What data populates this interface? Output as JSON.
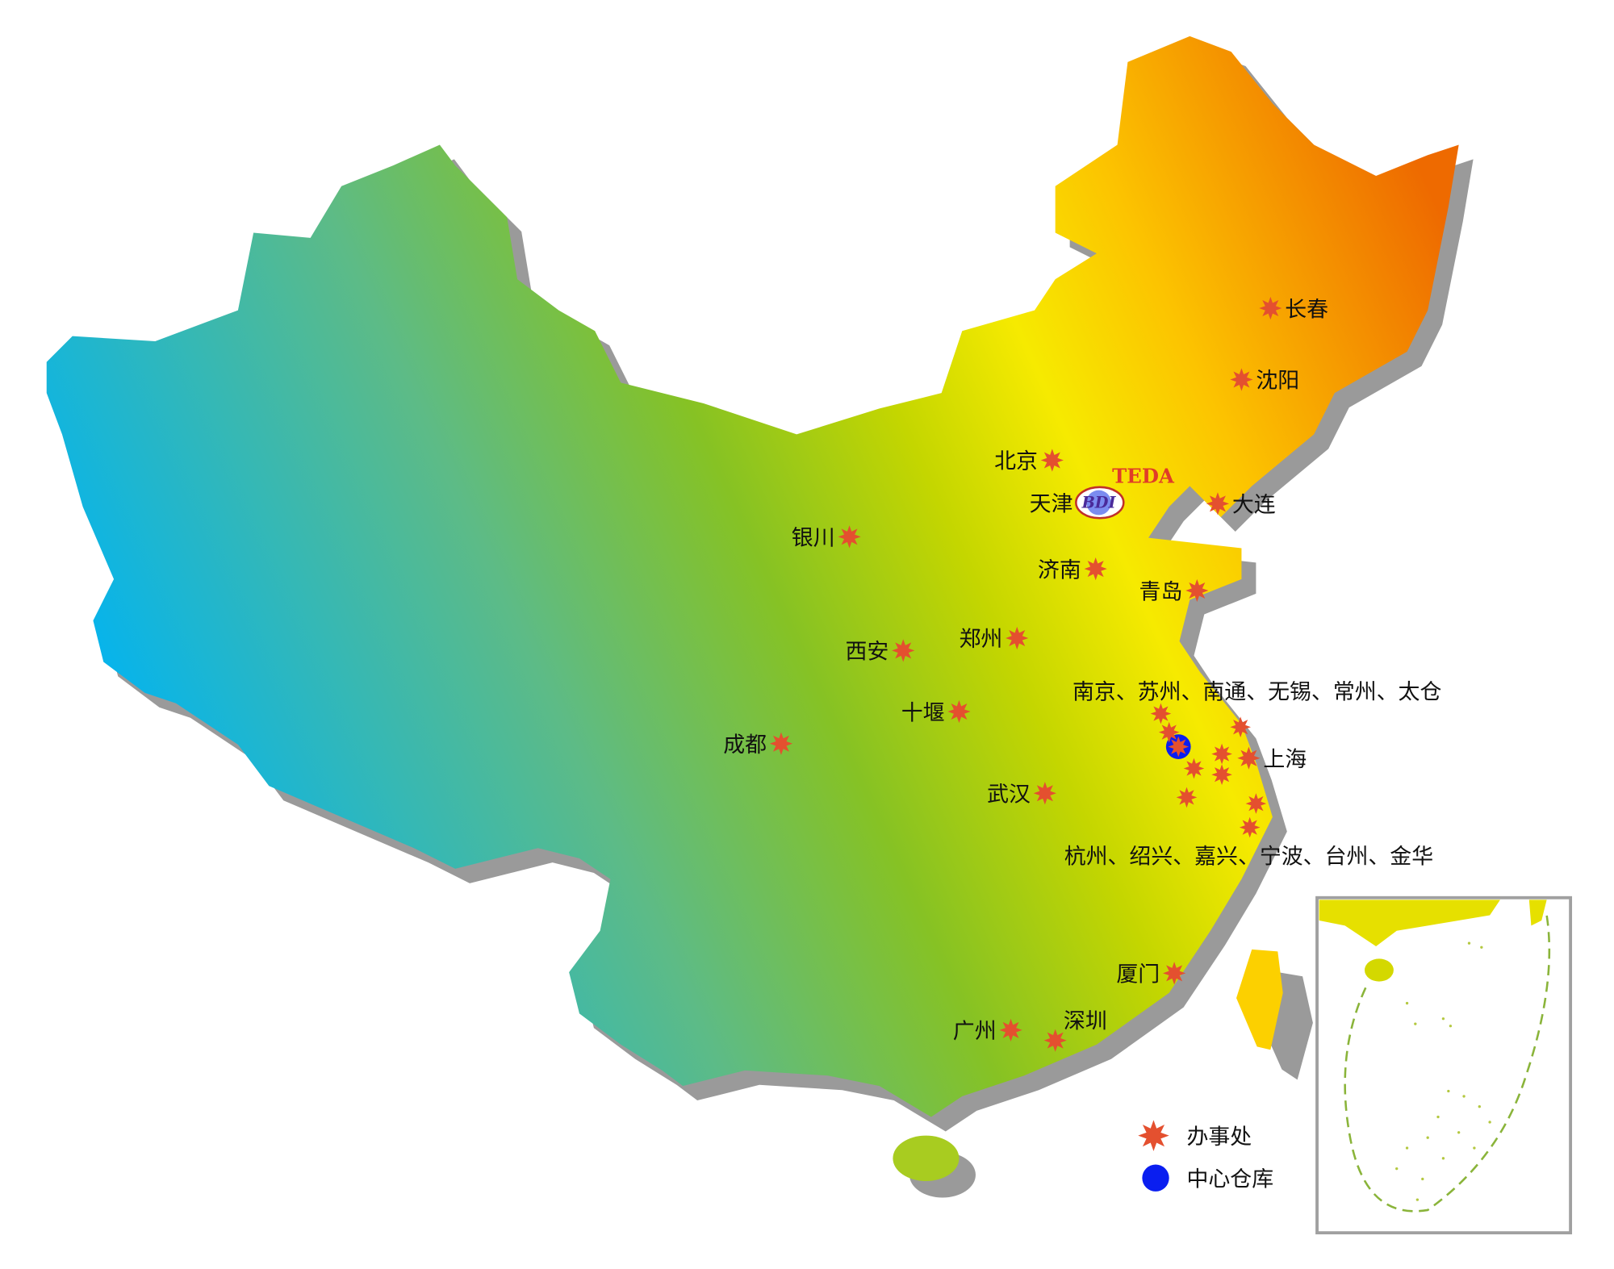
{
  "map": {
    "colors": {
      "office_star": "#e4502f",
      "warehouse": "#0a1ef0",
      "shadow": "#9a9a9a",
      "inset_border": "#a0a0a0",
      "nine_dash": "#8ab43a"
    },
    "logo": {
      "brand": "TEDA",
      "mark": "BDI"
    },
    "cities": [
      {
        "name": "长春",
        "side": "right"
      },
      {
        "name": "沈阳",
        "side": "right"
      },
      {
        "name": "北京",
        "side": "left"
      },
      {
        "name": "天津",
        "side": "left"
      },
      {
        "name": "大连",
        "side": "right"
      },
      {
        "name": "银川",
        "side": "left"
      },
      {
        "name": "济南",
        "side": "left"
      },
      {
        "name": "青岛",
        "side": "left"
      },
      {
        "name": "西安",
        "side": "left"
      },
      {
        "name": "郑州",
        "side": "left"
      },
      {
        "name": "十堰",
        "side": "left"
      },
      {
        "name": "成都",
        "side": "left"
      },
      {
        "name": "武汉",
        "side": "left"
      },
      {
        "name": "上海",
        "side": "right"
      },
      {
        "name": "厦门",
        "side": "left"
      },
      {
        "name": "广州",
        "side": "left"
      },
      {
        "name": "深圳",
        "side": "above"
      }
    ],
    "group_labels": {
      "jiangsu": "南京、苏州、南通、无锡、常州、太仓",
      "zhejiang": "杭州、绍兴、嘉兴、宁波、台州、金华"
    },
    "legend": [
      {
        "icon": "star-icon",
        "label": "办事处"
      },
      {
        "icon": "blue-dot-icon",
        "label": "中心仓库"
      }
    ]
  }
}
